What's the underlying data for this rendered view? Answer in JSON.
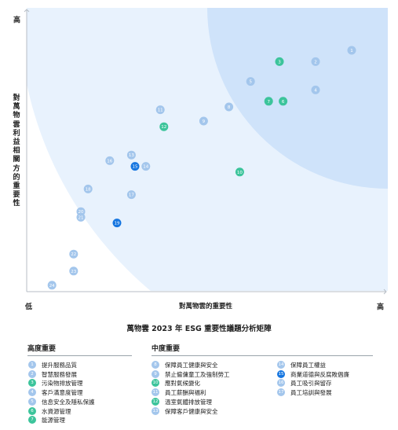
{
  "chart_data": {
    "type": "scatter",
    "title": "萬物雲 2023 年 ESG 重要性議題分析矩陣",
    "xlabel": "對萬物雲的重要性",
    "ylabel": "對萬物雲利益相關方的重要性",
    "x_low": "低",
    "x_high": "高",
    "y_high": "高",
    "xlim": [
      0,
      100
    ],
    "ylim": [
      0,
      100
    ],
    "colors": {
      "high": "#3cc49b",
      "medium": "#a3c6ec",
      "dark": "#1676e0",
      "region_outer": "#e8f2fd",
      "region_inner": "#cfe3fa"
    },
    "points": [
      {
        "id": "1",
        "x": 90,
        "y": 85,
        "color": "medium"
      },
      {
        "id": "2",
        "x": 80,
        "y": 81,
        "color": "medium"
      },
      {
        "id": "3",
        "x": 70,
        "y": 81,
        "color": "high"
      },
      {
        "id": "4",
        "x": 80,
        "y": 71,
        "color": "medium"
      },
      {
        "id": "5",
        "x": 62,
        "y": 74,
        "color": "medium"
      },
      {
        "id": "6",
        "x": 71,
        "y": 67,
        "color": "high"
      },
      {
        "id": "7",
        "x": 67,
        "y": 67,
        "color": "high"
      },
      {
        "id": "8",
        "x": 56,
        "y": 65,
        "color": "medium"
      },
      {
        "id": "9",
        "x": 49,
        "y": 60,
        "color": "medium"
      },
      {
        "id": "10",
        "x": 59,
        "y": 42,
        "color": "high"
      },
      {
        "id": "11",
        "x": 37,
        "y": 64,
        "color": "medium"
      },
      {
        "id": "12",
        "x": 38,
        "y": 58,
        "color": "high"
      },
      {
        "id": "13",
        "x": 29,
        "y": 48,
        "color": "medium"
      },
      {
        "id": "14",
        "x": 33,
        "y": 44,
        "color": "medium"
      },
      {
        "id": "15",
        "x": 30,
        "y": 44,
        "color": "dark"
      },
      {
        "id": "16",
        "x": 23,
        "y": 46,
        "color": "medium"
      },
      {
        "id": "17",
        "x": 29,
        "y": 34,
        "color": "medium"
      },
      {
        "id": "18",
        "x": 17,
        "y": 36,
        "color": "medium"
      },
      {
        "id": "19",
        "x": 25,
        "y": 24,
        "color": "dark"
      },
      {
        "id": "20",
        "x": 15,
        "y": 28,
        "color": "medium"
      },
      {
        "id": "21",
        "x": 15,
        "y": 26,
        "color": "medium"
      },
      {
        "id": "22",
        "x": 13,
        "y": 13,
        "color": "medium"
      },
      {
        "id": "23",
        "x": 13,
        "y": 7,
        "color": "medium"
      },
      {
        "id": "24",
        "x": 7,
        "y": 2,
        "color": "medium"
      }
    ]
  },
  "legend": {
    "high": {
      "title": "高度重要",
      "items": [
        {
          "num": "1",
          "label": "提升服務品質",
          "color": "medium"
        },
        {
          "num": "2",
          "label": "智慧服務發展",
          "color": "medium"
        },
        {
          "num": "3",
          "label": "污染物排放管理",
          "color": "high"
        },
        {
          "num": "4",
          "label": "客戶滿意度管理",
          "color": "medium"
        },
        {
          "num": "5",
          "label": "信息安全及隱私保護",
          "color": "medium"
        },
        {
          "num": "6",
          "label": "水資源管理",
          "color": "high"
        },
        {
          "num": "7",
          "label": "能源管理",
          "color": "high"
        }
      ]
    },
    "medium": {
      "title": "中度重要",
      "col1": [
        {
          "num": "8",
          "label": "保障員工健康與安全",
          "color": "medium"
        },
        {
          "num": "9",
          "label": "禁止僱傭童工及強制勞工",
          "color": "medium"
        },
        {
          "num": "10",
          "label": "應對氣候變化",
          "color": "high"
        },
        {
          "num": "11",
          "label": "員工薪酬與福利",
          "color": "medium"
        },
        {
          "num": "12",
          "label": "溫室氣體排放管理",
          "color": "high"
        },
        {
          "num": "13",
          "label": "保障客戶健康與安全",
          "color": "medium"
        }
      ],
      "col2": [
        {
          "num": "14",
          "label": "保障員工權益",
          "color": "medium"
        },
        {
          "num": "15",
          "label": "商業道德與反腐敗倡廉",
          "color": "dark"
        },
        {
          "num": "16",
          "label": "員工吸引與留存",
          "color": "medium"
        },
        {
          "num": "17",
          "label": "員工培訓與發展",
          "color": "medium"
        }
      ]
    }
  }
}
